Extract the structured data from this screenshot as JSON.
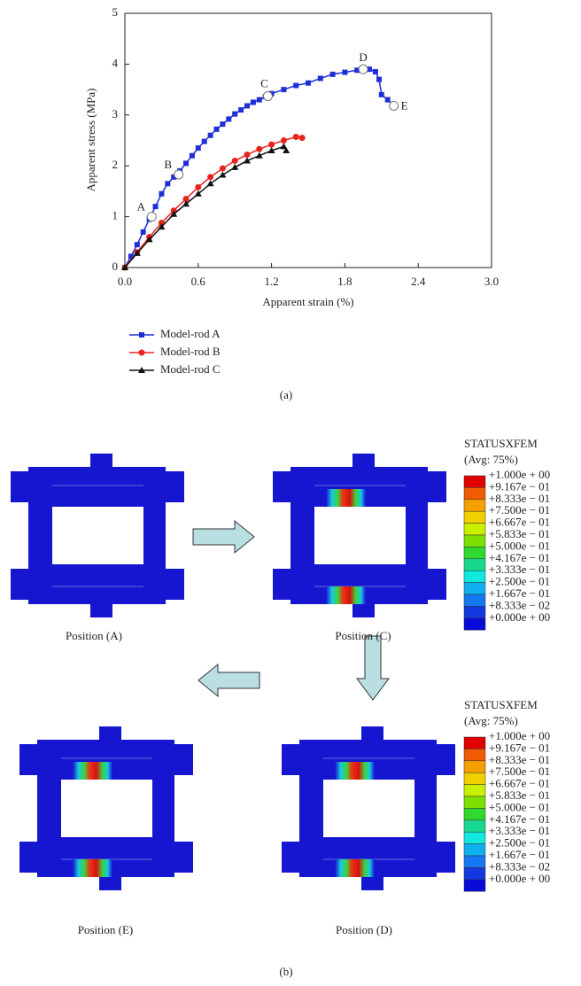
{
  "chart_data": {
    "type": "line",
    "xlabel": "Apparent strain (%)",
    "ylabel": "Apparent stress (MPa)",
    "xlim": [
      0,
      3.0
    ],
    "ylim": [
      0,
      5
    ],
    "xticks": [
      {
        "value": 0,
        "label": "0.0"
      },
      {
        "value": 0.6,
        "label": "0.6"
      },
      {
        "value": 1.2,
        "label": "1.2"
      },
      {
        "value": 1.8,
        "label": "1.8"
      },
      {
        "value": 2.4,
        "label": "2.4"
      },
      {
        "value": 3.0,
        "label": "3.0"
      }
    ],
    "yticks": [
      0,
      1,
      2,
      3,
      4,
      5
    ],
    "legend": "bottom-left",
    "series": [
      {
        "name": "Model-rod A",
        "color": "#1f2fd8",
        "marker": "square",
        "x": [
          0,
          0.05,
          0.1,
          0.15,
          0.2,
          0.25,
          0.3,
          0.35,
          0.4,
          0.45,
          0.5,
          0.55,
          0.6,
          0.65,
          0.7,
          0.75,
          0.8,
          0.85,
          0.9,
          0.95,
          1.0,
          1.05,
          1.1,
          1.15,
          1.2,
          1.3,
          1.4,
          1.5,
          1.6,
          1.7,
          1.8,
          1.9,
          1.95,
          2.0,
          2.05,
          2.08,
          2.1,
          2.15,
          2.2
        ],
        "values": [
          0,
          0.22,
          0.45,
          0.7,
          0.95,
          1.2,
          1.45,
          1.65,
          1.78,
          1.9,
          2.05,
          2.2,
          2.35,
          2.48,
          2.6,
          2.72,
          2.82,
          2.92,
          3.02,
          3.1,
          3.18,
          3.25,
          3.3,
          3.36,
          3.42,
          3.5,
          3.58,
          3.63,
          3.72,
          3.8,
          3.84,
          3.88,
          3.9,
          3.9,
          3.85,
          3.7,
          3.4,
          3.3,
          3.18
        ]
      },
      {
        "name": "Model-rod B",
        "color": "#e8231e",
        "marker": "circle",
        "x": [
          0,
          0.1,
          0.2,
          0.3,
          0.4,
          0.5,
          0.6,
          0.7,
          0.8,
          0.9,
          1.0,
          1.1,
          1.2,
          1.3,
          1.4,
          1.45
        ],
        "values": [
          0,
          0.3,
          0.6,
          0.88,
          1.12,
          1.35,
          1.58,
          1.78,
          1.95,
          2.1,
          2.22,
          2.33,
          2.42,
          2.5,
          2.57,
          2.55
        ]
      },
      {
        "name": "Model-rod C",
        "color": "#111111",
        "marker": "triangle",
        "x": [
          0,
          0.1,
          0.2,
          0.3,
          0.4,
          0.5,
          0.6,
          0.7,
          0.8,
          0.9,
          1.0,
          1.1,
          1.2,
          1.3,
          1.32
        ],
        "values": [
          0,
          0.28,
          0.55,
          0.8,
          1.05,
          1.25,
          1.45,
          1.65,
          1.82,
          1.97,
          2.1,
          2.2,
          2.3,
          2.38,
          2.3
        ]
      }
    ],
    "annotations": [
      {
        "text": "A",
        "x": 0.22,
        "y": 1.0
      },
      {
        "text": "B",
        "x": 0.44,
        "y": 1.83
      },
      {
        "text": "C",
        "x": 1.17,
        "y": 3.37
      },
      {
        "text": "D",
        "x": 1.95,
        "y": 3.9
      },
      {
        "text": "E",
        "x": 2.2,
        "y": 3.18
      }
    ],
    "caption": "(a)"
  },
  "diagram": {
    "panels": [
      {
        "label": "Position (A)"
      },
      {
        "label": "Position (C)"
      },
      {
        "label": "Position (D)"
      },
      {
        "label": "Position (E)"
      }
    ],
    "contours": [
      {
        "title": "STATUSXFEM",
        "subtitle": "(Avg: 75%)",
        "labels": [
          "+1.000e + 00",
          "+9.167e − 01",
          "+8.333e − 01",
          "+7.500e − 01",
          "+6.667e − 01",
          "+5.833e − 01",
          "+5.000e − 01",
          "+4.167e − 01",
          "+3.333e − 01",
          "+2.500e − 01",
          "+1.667e − 01",
          "+8.333e − 02",
          "+0.000e + 00"
        ]
      },
      {
        "title": "STATUSXFEM",
        "subtitle": "(Avg: 75%)",
        "labels": [
          "+1.000e + 00",
          "+9.167e − 01",
          "+8.333e − 01",
          "+7.500e − 01",
          "+6.667e − 01",
          "+5.833e − 01",
          "+5.000e − 01",
          "+4.167e − 01",
          "+3.333e − 01",
          "+2.500e − 01",
          "+1.667e − 01",
          "+8.333e − 02",
          "+0.000e + 00"
        ]
      }
    ],
    "caption": "(b)"
  }
}
